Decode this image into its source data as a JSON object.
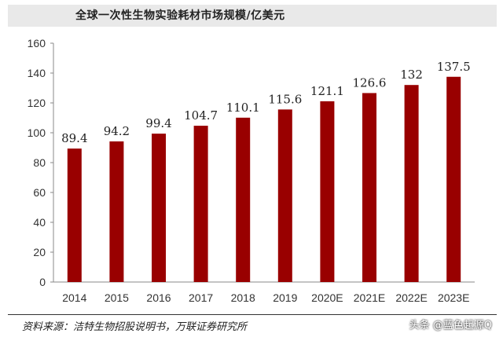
{
  "chart_data": {
    "type": "bar",
    "title": "全球一次性生物实验耗材市场规模/亿美元",
    "categories": [
      "2014",
      "2015",
      "2016",
      "2017",
      "2018",
      "2019",
      "2020E",
      "2021E",
      "2022E",
      "2023E"
    ],
    "values": [
      89.4,
      94.2,
      99.4,
      104.7,
      110.1,
      115.6,
      121.1,
      126.6,
      132,
      137.5
    ],
    "data_labels": [
      "89.4",
      "94.2",
      "99.4",
      "104.7",
      "110.1",
      "115.6",
      "121.1",
      "126.6",
      "132",
      "137.5"
    ],
    "ylim": [
      0,
      160
    ],
    "yticks": [
      0,
      20,
      40,
      60,
      80,
      100,
      120,
      140,
      160
    ],
    "grid": false,
    "bar_color": "#990000"
  },
  "source": "资料来源：洁特生物招股说明书，万联证券研究所",
  "watermark": "头条 @蓝色起源Q"
}
